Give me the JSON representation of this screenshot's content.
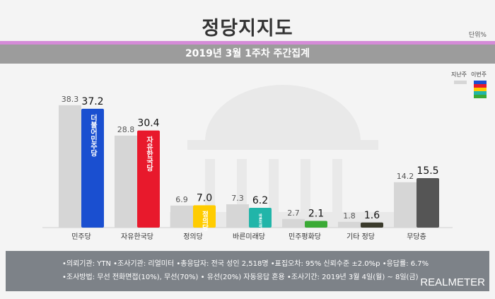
{
  "header": {
    "title": "정당지지도",
    "unit": "단위%",
    "subtitle": "2019년 3월 1주차 주간집계"
  },
  "legend": {
    "previous": "지난주",
    "current": "이번주",
    "previous_color": "#d6d6d6",
    "current_colors": [
      "#1a4fd0",
      "#e8192c",
      "#ffcc00",
      "#21b5a9",
      "#3aaa35"
    ]
  },
  "chart_data": {
    "type": "bar",
    "title": "정당지지도",
    "subtitle": "2019년 3월 1주차 주간집계",
    "categories": [
      "민주당",
      "자유한국당",
      "정의당",
      "바른미래당",
      "민주평화당",
      "기타 정당",
      "무당층"
    ],
    "series": [
      {
        "name": "지난주",
        "values": [
          38.3,
          28.8,
          6.9,
          7.3,
          2.7,
          1.8,
          14.2
        ],
        "color": "#d6d6d6"
      },
      {
        "name": "이번주",
        "values": [
          37.2,
          30.4,
          7.0,
          6.2,
          2.1,
          1.6,
          15.5
        ],
        "colors": [
          "#1a4fd0",
          "#e8192c",
          "#ffcc00",
          "#21b5a9",
          "#3aaa35",
          "#3b3b2c",
          "#555555"
        ]
      }
    ],
    "bar_logos": [
      "더불어민주당",
      "자유한국당",
      "정의당",
      "바른미래당",
      "민주평화당",
      "",
      ""
    ],
    "ylim": [
      0,
      40
    ],
    "grid": false,
    "legend_position": "top-right"
  },
  "footer": {
    "line1": "•의뢰기관: YTN  •조사기관: 리얼미터  •총응답자: 전국 성인 2,518명  •표집오차: 95% 신뢰수준 ±2.0%p  •응답률: 6.7%",
    "line2": "•조사방법: 무선 전화면접(10%), 무선(70%) • 유선(20%) 자동응답 혼용   •조사기간: 2019년 3월 4일(월) ~ 8일(금)",
    "brand": "REALMETER"
  }
}
